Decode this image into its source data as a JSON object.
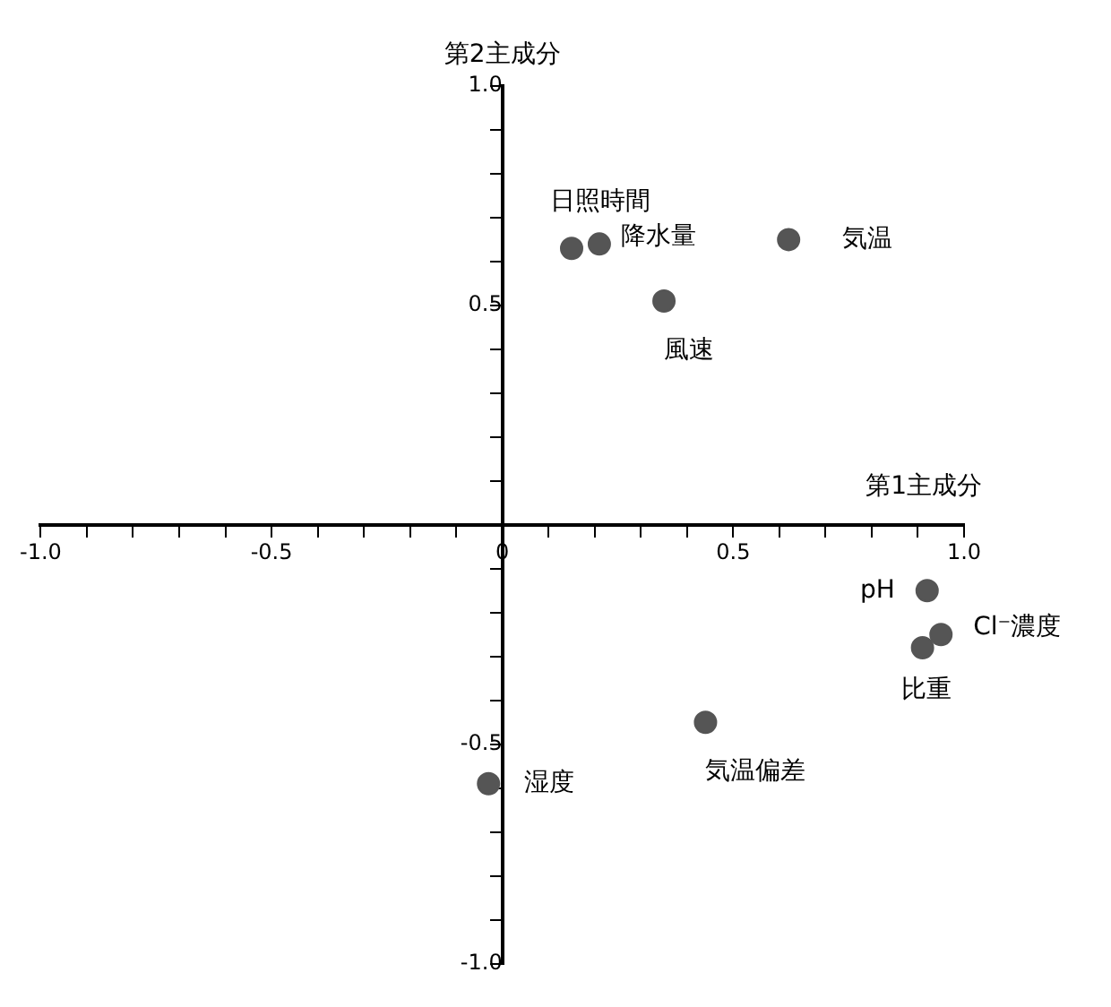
{
  "chart_data": {
    "type": "scatter",
    "xlabel": "第1主成分",
    "ylabel": "第2主成分",
    "x": [
      0.15,
      0.21,
      0.62,
      0.35,
      0.92,
      0.95,
      0.91,
      0.44,
      -0.03
    ],
    "series": [
      {
        "color": "#555555",
        "values": [
          0.63,
          0.64,
          0.65,
          0.51,
          -0.15,
          -0.25,
          -0.28,
          -0.45,
          -0.59
        ]
      }
    ],
    "xlim": [
      -1,
      1
    ],
    "ylim": [
      -1,
      1
    ],
    "xticks": [
      {
        "value": -1,
        "label": "-1.0"
      },
      {
        "value": -0.9,
        "label": null
      },
      {
        "value": -0.8,
        "label": null
      },
      {
        "value": -0.7,
        "label": null
      },
      {
        "value": -0.6,
        "label": null
      },
      {
        "value": -0.5,
        "label": "-0.5"
      },
      {
        "value": -0.4,
        "label": null
      },
      {
        "value": -0.3,
        "label": null
      },
      {
        "value": -0.2,
        "label": null
      },
      {
        "value": -0.1,
        "label": null
      },
      0,
      {
        "value": 0.1,
        "label": null
      },
      {
        "value": 0.2,
        "label": null
      },
      {
        "value": 0.3,
        "label": null
      },
      {
        "value": 0.4,
        "label": null
      },
      0.5,
      {
        "value": 0.6,
        "label": null
      },
      {
        "value": 0.7,
        "label": null
      },
      {
        "value": 0.8,
        "label": null
      },
      {
        "value": 0.9,
        "label": null
      },
      {
        "value": 1,
        "label": "1.0"
      }
    ],
    "yticks": [
      {
        "value": -1,
        "label": "-1.0"
      },
      {
        "value": -0.9,
        "label": null
      },
      {
        "value": -0.8,
        "label": null
      },
      {
        "value": -0.7,
        "label": null
      },
      {
        "value": -0.6,
        "label": null
      },
      -0.5,
      {
        "value": -0.4,
        "label": null
      },
      {
        "value": -0.3,
        "label": null
      },
      {
        "value": -0.2,
        "label": null
      },
      {
        "value": -0.1,
        "label": null
      },
      {
        "value": 0,
        "label": null
      },
      {
        "value": 0.1,
        "label": null
      },
      {
        "value": 0.2,
        "label": null
      },
      {
        "value": 0.3,
        "label": null
      },
      {
        "value": 0.4,
        "label": null
      },
      0.5,
      {
        "value": 0.6,
        "label": null
      },
      {
        "value": 0.7,
        "label": null
      },
      {
        "value": 0.8,
        "label": null
      },
      {
        "value": 0.9,
        "label": null
      },
      {
        "value": 1,
        "label": "1.0"
      }
    ],
    "annotations": [
      {
        "text": "日照時間",
        "x": 0.15,
        "y": 0.63
      },
      {
        "text": "降水量",
        "x": 0.21,
        "y": 0.64
      },
      {
        "text": "気温",
        "x": 0.62,
        "y": 0.65
      },
      {
        "text": "風速",
        "x": 0.35,
        "y": 0.51
      },
      {
        "text": "pH",
        "x": 0.92,
        "y": -0.15
      },
      {
        "text": "Cl⁻濃度",
        "x": 0.95,
        "y": -0.25
      },
      {
        "text": "比重",
        "x": 0.91,
        "y": -0.28
      },
      {
        "text": "気温偏差",
        "x": 0.44,
        "y": -0.45
      },
      {
        "text": "湿度",
        "x": -0.03,
        "y": -0.59
      }
    ],
    "grid": false,
    "legend": false,
    "marker": "circle"
  }
}
